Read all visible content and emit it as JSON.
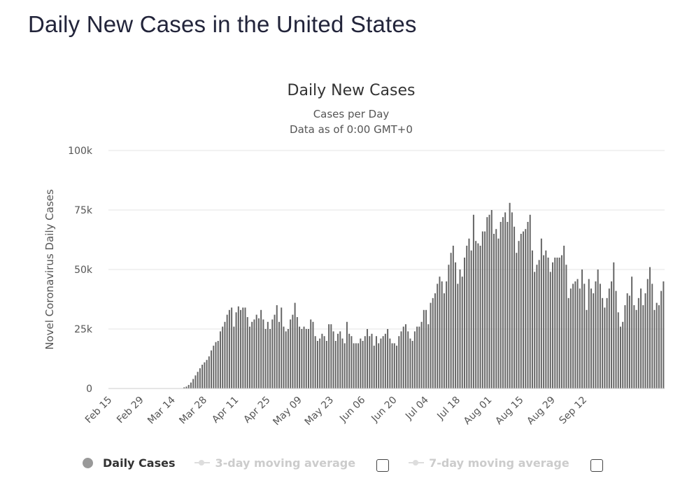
{
  "page": {
    "heading": "Daily New Cases in the United States"
  },
  "chart_data": {
    "type": "bar",
    "title": "Daily New Cases",
    "subtitle_lines": [
      "Cases per Day",
      "Data as of 0:00 GMT+0"
    ],
    "ylabel": "Novel Coronavirus Daily Cases",
    "xlabel": "",
    "ylim": [
      0,
      100000
    ],
    "y_ticks": [
      {
        "value": 0,
        "label": "0"
      },
      {
        "value": 25000,
        "label": "25k"
      },
      {
        "value": 50000,
        "label": "50k"
      },
      {
        "value": 75000,
        "label": "75k"
      },
      {
        "value": 100000,
        "label": "100k"
      }
    ],
    "x_ticks": [
      {
        "index": 0,
        "label": "Feb 15"
      },
      {
        "index": 14,
        "label": "Feb 29"
      },
      {
        "index": 28,
        "label": "Mar 14"
      },
      {
        "index": 42,
        "label": "Mar 28"
      },
      {
        "index": 56,
        "label": "Apr 11"
      },
      {
        "index": 70,
        "label": "Apr 25"
      },
      {
        "index": 84,
        "label": "May 09"
      },
      {
        "index": 98,
        "label": "May 23"
      },
      {
        "index": 112,
        "label": "Jun 06"
      },
      {
        "index": 126,
        "label": "Jun 20"
      },
      {
        "index": 140,
        "label": "Jul 04"
      },
      {
        "index": 154,
        "label": "Jul 18"
      },
      {
        "index": 168,
        "label": "Aug 01"
      },
      {
        "index": 182,
        "label": "Aug 15"
      },
      {
        "index": 196,
        "label": "Aug 29"
      },
      {
        "index": 210,
        "label": "Sep 12"
      }
    ],
    "grid": true,
    "legend_position": "bottom",
    "bar_color": "#666666",
    "series": [
      {
        "name": "Daily Cases",
        "values": [
          0,
          0,
          0,
          0,
          0,
          0,
          0,
          0,
          0,
          0,
          0,
          0,
          0,
          0,
          0,
          0,
          0,
          0,
          0,
          0,
          0,
          0,
          0,
          0,
          0,
          0,
          0,
          0,
          0,
          0,
          0,
          0,
          0,
          500,
          800,
          1500,
          2500,
          4000,
          5500,
          7000,
          8500,
          10000,
          11000,
          12000,
          13500,
          16000,
          18000,
          19500,
          20000,
          24000,
          26000,
          28000,
          31000,
          33000,
          34000,
          26000,
          32000,
          34500,
          33000,
          34000,
          34000,
          30000,
          26000,
          28000,
          29000,
          31000,
          29500,
          33000,
          29000,
          25000,
          28000,
          25000,
          29000,
          31000,
          35000,
          28000,
          34000,
          26000,
          24000,
          25000,
          29000,
          31000,
          36000,
          30000,
          26000,
          25000,
          26000,
          25000,
          25000,
          29000,
          28000,
          22000,
          20000,
          21000,
          23000,
          22000,
          20000,
          27000,
          27000,
          24000,
          20000,
          23000,
          24000,
          21000,
          19000,
          28000,
          23000,
          22000,
          19000,
          19000,
          19000,
          21000,
          20000,
          22000,
          25000,
          22000,
          23000,
          18000,
          22000,
          19000,
          21000,
          22000,
          23000,
          25000,
          21000,
          19000,
          19000,
          18000,
          22000,
          24000,
          26000,
          27000,
          24000,
          21000,
          20000,
          24000,
          26000,
          26000,
          28000,
          33000,
          33000,
          27000,
          36000,
          38000,
          40000,
          44000,
          47000,
          45000,
          40000,
          45000,
          52000,
          57000,
          60000,
          53000,
          44000,
          50000,
          47000,
          55000,
          60000,
          63000,
          58000,
          73000,
          62000,
          61000,
          60000,
          66000,
          66000,
          72000,
          73000,
          75000,
          65000,
          67000,
          63000,
          70000,
          72000,
          74000,
          70000,
          78000,
          74000,
          68000,
          57000,
          62000,
          65000,
          66000,
          67000,
          70000,
          73000,
          58000,
          49000,
          52000,
          54000,
          63000,
          56000,
          58000,
          55000,
          49000,
          53000,
          55000,
          55000,
          55000,
          56000,
          60000,
          52000,
          38000,
          42000,
          44000,
          45000,
          46000,
          42000,
          50000,
          44000,
          33000,
          46000,
          42000,
          40000,
          45000,
          50000,
          44000,
          38000,
          34000,
          38000,
          42000,
          45000,
          53000,
          41000,
          32000,
          26000,
          28000,
          35000,
          40000,
          39000,
          47000,
          35000,
          33000,
          38000,
          42000,
          35000,
          40000,
          46000,
          51000,
          44000,
          33000,
          36000,
          35000,
          41000,
          45000
        ]
      }
    ]
  },
  "legend": {
    "items": [
      {
        "label": "Daily Cases",
        "state": "active",
        "dot_color": "#999999"
      },
      {
        "label": "3-day moving average",
        "state": "inactive",
        "has_checkbox": true
      },
      {
        "label": "7-day moving average",
        "state": "inactive",
        "has_checkbox": true
      }
    ]
  }
}
